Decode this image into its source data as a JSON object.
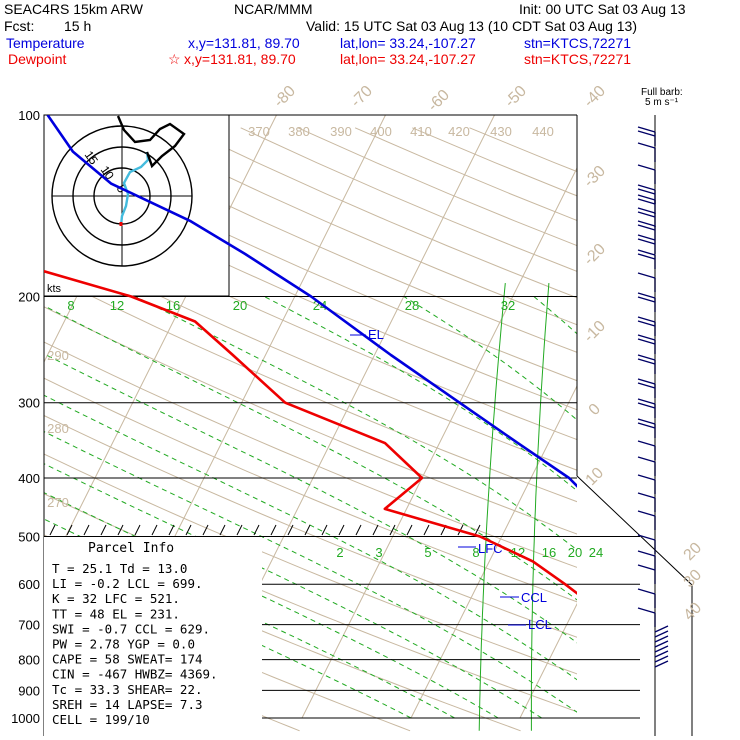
{
  "header": {
    "model": "SEAC4RS 15km ARW",
    "org": "NCAR/MMM",
    "init": "Init: 00 UTC Sat 03 Aug 13",
    "fcst_label": "Fcst:",
    "fcst_value": "15 h",
    "valid": "Valid: 15 UTC Sat 03 Aug 13 (10 CDT Sat 03 Aug 13)",
    "temp_label": "Temperature",
    "temp_loc": "x,y=131.81, 89.70",
    "temp_latlon": "lat,lon= 33.24,-107.27",
    "temp_stn": "stn=KTCS,72271",
    "dew_label": "Dewpoint",
    "dew_marker": "☆",
    "dew_loc": "x,y=131.81, 89.70",
    "dew_latlon": "lat,lon= 33.24,-107.27",
    "dew_stn": "stn=KTCS,72271",
    "barb_key_line1": "Full barb:",
    "barb_key_line2": "5 m s⁻¹"
  },
  "colors": {
    "temperature": "#0000dd",
    "dewpoint": "#ee0000",
    "mixing_ratio": "#22aa22",
    "isotherm": "#c8b8a0",
    "dry_adiabat": "#c8b8a0",
    "isobar": "#000000"
  },
  "parcel": {
    "title": "Parcel Info",
    "rows": [
      "T   =    25.1  Td =  13.0",
      "LI  =    -0.2  LCL =  699.",
      "K   =      32  LFC =  521.",
      "TT  =      48  EL  =  231.",
      "SWI =    -0.7  CCL =  629.",
      "PW  =    2.78  YGP =   0.0",
      "CAPE =     58  SWEAT=  174",
      "CIN  =   -467  HWBZ= 4369.",
      "Tc  =    33.3  SHEAR=  22.",
      "SREH =     14  LAPSE=  7.3",
      "CELL = 199/10"
    ]
  },
  "hodograph": {
    "units": "kts",
    "ring_labels": [
      "15",
      "10",
      "5"
    ]
  },
  "chart_data": {
    "type": "line",
    "chart_kind": "skew-T log-P thermodynamic diagram",
    "y_axis": "pressure (hPa), log scale",
    "pressure_ticks": [
      100,
      200,
      300,
      400,
      500,
      600,
      700,
      800,
      900,
      1000
    ],
    "pressure_tick_labels": [
      "100",
      "200",
      "300",
      "400",
      "500",
      "600",
      "700",
      "800",
      "900",
      "1000"
    ],
    "isotherm_labels": [
      "-80",
      "-70",
      "-60",
      "-50",
      "-40",
      "-30",
      "-20",
      "-10",
      "0",
      "10",
      "20",
      "30",
      "40"
    ],
    "dry_adiabat_labels": [
      "370",
      "380",
      "390",
      "400",
      "410",
      "420",
      "430",
      "440",
      "290",
      "280",
      "270"
    ],
    "mixing_ratio_labels_upper": [
      "8",
      "12",
      "16",
      "20",
      "24",
      "28",
      "32"
    ],
    "mixing_ratio_labels_lower": [
      "2",
      "3",
      "5",
      "8",
      "12",
      "16",
      "20",
      "24"
    ],
    "annotations": [
      "EL",
      "LFC",
      "CCL",
      "LCL"
    ],
    "series": [
      {
        "name": "Temperature",
        "points_p_t": [
          [
            860,
            25.1
          ],
          [
            800,
            22.0
          ],
          [
            750,
            19.6
          ],
          [
            700,
            16.2
          ],
          [
            650,
            13.0
          ],
          [
            600,
            9.2
          ],
          [
            550,
            5.5
          ],
          [
            500,
            2.2
          ],
          [
            450,
            -2.3
          ],
          [
            400,
            -6.5
          ],
          [
            350,
            -12.8
          ],
          [
            300,
            -20.0
          ],
          [
            250,
            -28.5
          ],
          [
            200,
            -38.5
          ],
          [
            170,
            -46.5
          ],
          [
            150,
            -53.0
          ],
          [
            130,
            -62.0
          ],
          [
            115,
            -67.0
          ],
          [
            100,
            -71.0
          ]
        ]
      },
      {
        "name": "Dewpoint",
        "points_p_t": [
          [
            860,
            13.0
          ],
          [
            800,
            12.8
          ],
          [
            750,
            11.0
          ],
          [
            700,
            4.5
          ],
          [
            650,
            1.5
          ],
          [
            600,
            -2.0
          ],
          [
            550,
            -6.0
          ],
          [
            500,
            -12.0
          ],
          [
            450,
            -22.0
          ],
          [
            400,
            -20.0
          ],
          [
            350,
            -25.0
          ],
          [
            300,
            -36.0
          ],
          [
            250,
            -43.0
          ],
          [
            220,
            -48.0
          ],
          [
            200,
            -55.0
          ],
          [
            180,
            -65.0
          ],
          [
            160,
            -72.0
          ],
          [
            140,
            -79.0
          ],
          [
            120,
            -82.0
          ],
          [
            110,
            -82.0
          ],
          [
            100,
            -82.0
          ]
        ]
      }
    ]
  }
}
